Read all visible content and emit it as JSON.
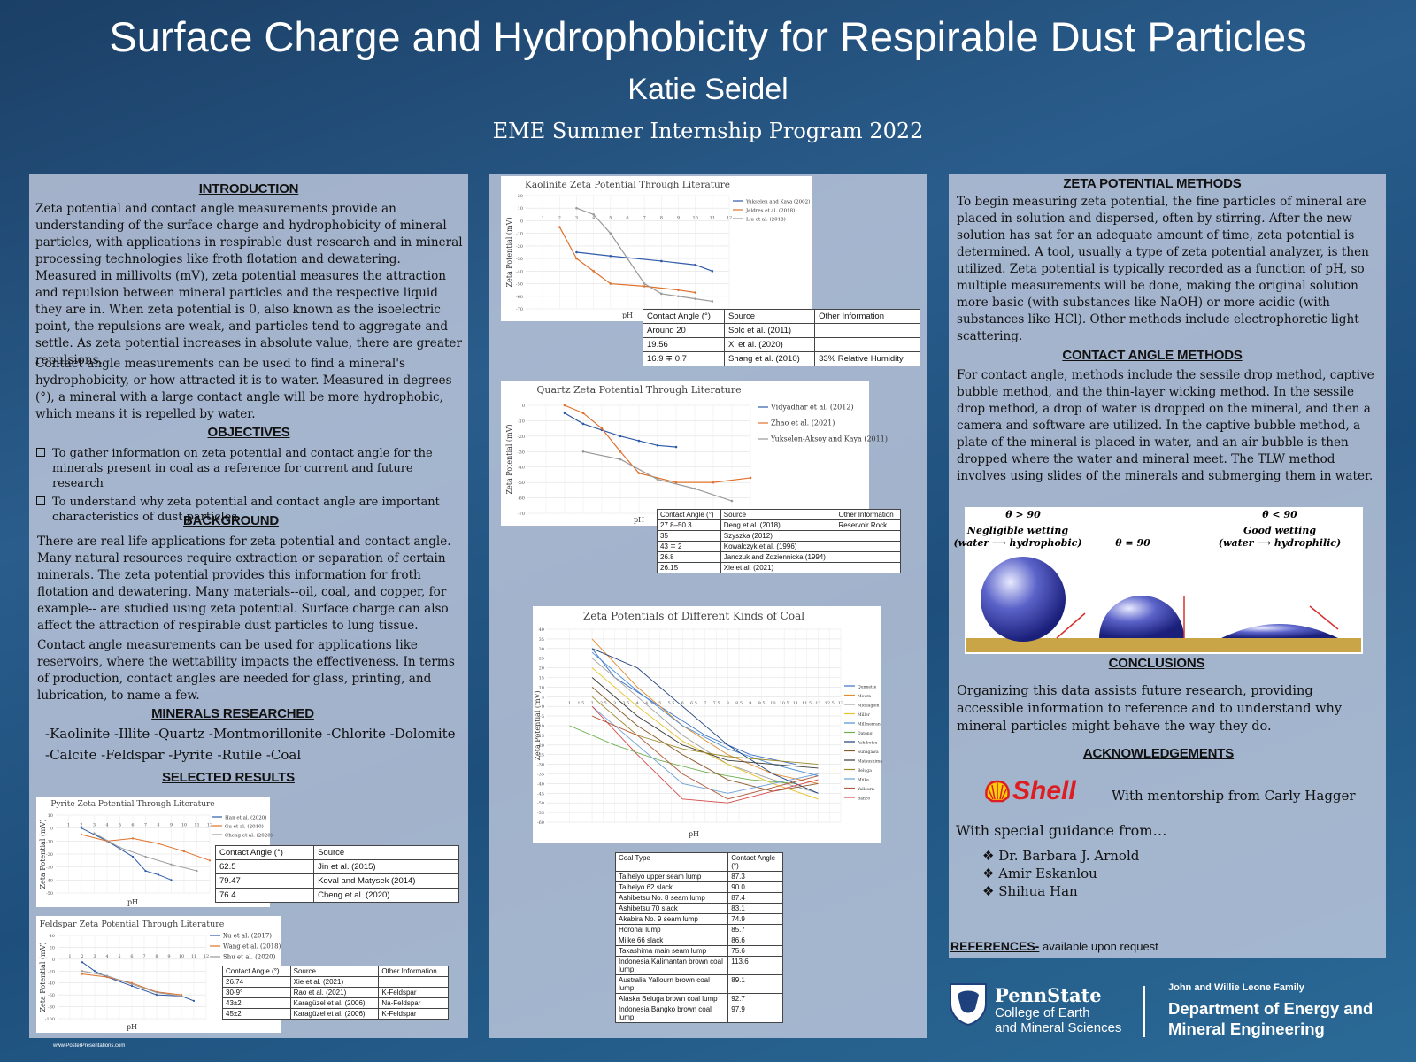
{
  "header": {
    "title": "Surface Charge and Hydrophobicity for Respirable Dust Particles",
    "author": "Katie Seidel",
    "program": "EME Summer Internship Program 2022"
  },
  "intro": {
    "heading": "INTRODUCTION",
    "p1": "Zeta potential and contact angle measurements provide an understanding of the surface charge and hydrophobicity of mineral particles, with applications in respirable dust research and in mineral processing technologies like froth flotation and dewatering. Measured in millivolts (mV), zeta potential measures the attraction and repulsion between mineral particles and the respective liquid they are in. When zeta potential is 0, also known as the isoelectric point, the repulsions are weak, and particles tend to aggregate and settle. As zeta potential increases in absolute value, there are greater repulsions.",
    "p2": "Contact angle measurements can be used to find a mineral's hydrophobicity, or how attracted it is to water. Measured in degrees (°), a mineral with a large contact angle will be more hydrophobic, which means it is repelled by water."
  },
  "objectives": {
    "heading": "OBJECTIVES",
    "items": [
      "To gather information on zeta potential and contact angle for the minerals present in coal as a reference for current and future research",
      "To understand why zeta potential and contact angle are important characteristics of dust particles"
    ]
  },
  "background": {
    "heading": "BACKGROUND",
    "p1": "There are real life applications for zeta potential and contact angle. Many natural resources require extraction or separation of certain minerals. The zeta potential provides this information for froth flotation and dewatering. Many materials--oil, coal, and copper, for example-- are studied using zeta potential. Surface charge can also affect the attraction of respirable dust particles to lung tissue.",
    "p2": "Contact angle measurements can be used for applications like reservoirs, where the wettability impacts the effectiveness. In terms of production, contact angles are needed for glass, printing, and lubrication, to name a few."
  },
  "minerals": {
    "heading": "MINERALS RESEARCHED",
    "line1": "-Kaolinite  -Illite -Quartz -Montmorillonite -Chlorite -Dolomite",
    "line2": "-Calcite -Feldspar -Pyrite -Rutile -Coal"
  },
  "selected_heading": "SELECTED RESULTS",
  "tables": {
    "headers": {
      "angle": "Contact Angle (°)",
      "source": "Source",
      "other": "Other Information"
    },
    "pyrite": [
      [
        "62.5",
        "Jin et al. (2015)"
      ],
      [
        "79.47",
        "Koval and Matysek (2014)"
      ],
      [
        "76.4",
        "Cheng et al. (2020)"
      ]
    ],
    "feldspar": [
      [
        "26.74",
        "Xie et al. (2021)",
        ""
      ],
      [
        "30-9°",
        "Rao et al. (2021)",
        "K-Feldspar"
      ],
      [
        "43±2",
        "Karagüzel et al. (2006)",
        "Na-Feldspar"
      ],
      [
        "45±2",
        "Karagüzel et al. (2006)",
        "K-Feldspar"
      ]
    ],
    "kaolinite": [
      [
        "Around 20",
        "Solc et al. (2011)",
        ""
      ],
      [
        "19.56",
        "Xi et al. (2020)",
        ""
      ],
      [
        "16.9 ∓ 0.7",
        "Shang et al. (2010)",
        "33% Relative Humidity"
      ]
    ],
    "quartz": [
      [
        "27.8–50.3",
        "Deng et al. (2018)",
        "Reservoir Rock"
      ],
      [
        "35",
        "Szyszka (2012)",
        ""
      ],
      [
        "43 ∓ 2",
        "Kowalczyk et al. (1996)",
        ""
      ],
      [
        "26.8",
        "Janczuk and Zdziennicka (1994)",
        ""
      ],
      [
        "26.15",
        "Xie et al. (2021)",
        ""
      ]
    ],
    "coal_headers": {
      "type": "Coal Type",
      "angle": "Contact Angle (°)"
    },
    "coal": [
      [
        "Taiheiyo upper seam lump",
        "87.3"
      ],
      [
        "Taiheiyo 62 slack",
        "90.0"
      ],
      [
        "Ashibetsu No. 8 seam lump",
        "87.4"
      ],
      [
        "Ashibetsu 70 slack",
        "83.1"
      ],
      [
        "Akabira No. 9 seam lump",
        "74.9"
      ],
      [
        "Horonai lump",
        "85.7"
      ],
      [
        "Miike 66 slack",
        "86.6"
      ],
      [
        "Takashima main seam lump",
        "75.6"
      ],
      [
        "Indonesia Kalimantan brown coal lump",
        "113.6"
      ],
      [
        "Australia Yallourn brown coal lump",
        "89.1"
      ],
      [
        "Alaska Beluga brown coal lump",
        "92.7"
      ],
      [
        "Indonesia Bangko brown coal lump",
        "97.9"
      ]
    ]
  },
  "chart_data": [
    {
      "type": "line",
      "title": "Kaolinite Zeta Potential Through Literature",
      "xlabel": "pH",
      "ylabel": "Zeta Potential (mV)",
      "xlim": [
        0,
        12
      ],
      "ylim": [
        -70,
        20
      ],
      "series": [
        {
          "name": "Yukselen and Kaya (2002)",
          "color": "#2f5aa8",
          "x": [
            3,
            5,
            8,
            10,
            11
          ],
          "y": [
            -25,
            -28,
            -32,
            -35,
            -40
          ]
        },
        {
          "name": "Jeldres et al. (2018)",
          "color": "#e0702a",
          "x": [
            2,
            3,
            4,
            5,
            7,
            9,
            10
          ],
          "y": [
            -5,
            -30,
            -40,
            -50,
            -52,
            -55,
            -57
          ]
        },
        {
          "name": "Liu et al. (2018)",
          "color": "#9a9a9a",
          "x": [
            3,
            4,
            5,
            6,
            7,
            8,
            9,
            10,
            11
          ],
          "y": [
            10,
            5,
            -10,
            -30,
            -50,
            -58,
            -60,
            -62,
            -64
          ]
        }
      ]
    },
    {
      "type": "line",
      "title": "Quartz Zeta Potential Through Literature",
      "xlabel": "pH",
      "ylabel": "Zeta Potential (mV)",
      "xlim": [
        0,
        12
      ],
      "ylim": [
        -70,
        0
      ],
      "series": [
        {
          "name": "Vidyadhar et al. (2012)",
          "color": "#2f5aa8",
          "x": [
            2,
            3,
            4,
            5,
            6,
            7,
            8
          ],
          "y": [
            -5,
            -12,
            -16,
            -20,
            -23,
            -26,
            -27
          ]
        },
        {
          "name": "Zhao et al. (2021)",
          "color": "#e0702a",
          "x": [
            2,
            3,
            4,
            5,
            6,
            8,
            10,
            12
          ],
          "y": [
            0,
            -5,
            -15,
            -30,
            -44,
            -50,
            -50,
            -47
          ]
        },
        {
          "name": "Yukselen-Aksoy and Kaya (2011)",
          "color": "#9a9a9a",
          "x": [
            3,
            5,
            7,
            9,
            11
          ],
          "y": [
            -30,
            -35,
            -48,
            -54,
            -62
          ]
        }
      ]
    },
    {
      "type": "line",
      "title": "Pyrite Zeta Potential Through Literature",
      "xlabel": "pH",
      "ylabel": "Zeta Potential (mV)",
      "xlim": [
        0,
        12
      ],
      "ylim": [
        -50,
        10
      ],
      "series": [
        {
          "name": "Han et al. (2020)",
          "color": "#2f5aa8",
          "x": [
            2,
            4,
            6,
            7,
            8,
            9
          ],
          "y": [
            0,
            -10,
            -22,
            -33,
            -36,
            -40
          ]
        },
        {
          "name": "Gu et al. (2010)",
          "color": "#e0702a",
          "x": [
            2,
            4,
            6,
            8,
            10,
            12
          ],
          "y": [
            -5,
            -10,
            -8,
            -12,
            -18,
            -25
          ]
        },
        {
          "name": "Cheng et al. (2020)",
          "color": "#9a9a9a",
          "x": [
            3,
            5,
            7,
            9,
            11
          ],
          "y": [
            -4,
            -15,
            -22,
            -28,
            -33
          ]
        }
      ]
    },
    {
      "type": "line",
      "title": "Feldspar Zeta Potential Through Literature",
      "xlabel": "pH",
      "ylabel": "Zeta Potential (mV)",
      "xlim": [
        0,
        12
      ],
      "ylim": [
        -100,
        40
      ],
      "series": [
        {
          "name": "Xu et al. (2017)",
          "color": "#2f5aa8",
          "x": [
            2,
            3,
            4,
            6,
            8,
            10,
            11
          ],
          "y": [
            -5,
            -20,
            -30,
            -45,
            -60,
            -62,
            -70
          ]
        },
        {
          "name": "Wang et al. (2018)",
          "color": "#e0702a",
          "x": [
            2,
            4,
            6,
            8,
            10
          ],
          "y": [
            -25,
            -30,
            -40,
            -55,
            -60
          ]
        },
        {
          "name": "Shu et al. (2020)",
          "color": "#9a9a9a",
          "x": [
            2,
            4,
            6,
            8,
            10
          ],
          "y": [
            -20,
            -28,
            -42,
            -56,
            -62
          ]
        }
      ]
    },
    {
      "type": "line",
      "title": "Zeta Potentials of Different Kinds of Coal",
      "xlabel": "pH",
      "ylabel": "Zeta Potential (mV)",
      "xlim": [
        0,
        13
      ],
      "ylim": [
        -60,
        40
      ],
      "series": [
        {
          "name": "Qunnette",
          "color": "#3b6fc4",
          "x": [
            2,
            3,
            5,
            7,
            9,
            11
          ],
          "y": [
            30,
            15,
            0,
            -15,
            -25,
            -30
          ]
        },
        {
          "name": "Moura",
          "color": "#e38a2e",
          "x": [
            2,
            4,
            6,
            8,
            10,
            12
          ],
          "y": [
            35,
            10,
            -10,
            -25,
            -35,
            -40
          ]
        },
        {
          "name": "Middagion",
          "color": "#a0a0a0",
          "x": [
            2,
            4,
            6,
            8,
            10,
            12
          ],
          "y": [
            25,
            5,
            -15,
            -30,
            -38,
            -45
          ]
        },
        {
          "name": "Miller",
          "color": "#e8c228",
          "x": [
            2,
            4,
            6,
            8,
            10,
            12
          ],
          "y": [
            20,
            0,
            -18,
            -30,
            -40,
            -48
          ]
        },
        {
          "name": "Millmerran",
          "color": "#4b8fd4",
          "x": [
            2,
            4,
            6,
            8,
            10,
            12
          ],
          "y": [
            28,
            8,
            -10,
            -22,
            -30,
            -36
          ]
        },
        {
          "name": "Datong",
          "color": "#6ab04c",
          "x": [
            1,
            3,
            5,
            7,
            9,
            11
          ],
          "y": [
            -10,
            -20,
            -28,
            -34,
            -38,
            -40
          ]
        },
        {
          "name": "Ashibetsu",
          "color": "#1f3f7a",
          "x": [
            2,
            4,
            6,
            8,
            10,
            12
          ],
          "y": [
            30,
            20,
            0,
            -20,
            -35,
            -45
          ]
        },
        {
          "name": "Sunagawa",
          "color": "#8a5a2b",
          "x": [
            2,
            4,
            6,
            8,
            10,
            12
          ],
          "y": [
            10,
            -10,
            -25,
            -38,
            -44,
            -40
          ]
        },
        {
          "name": "Matsushima",
          "color": "#3a3a3a",
          "x": [
            2,
            4,
            6,
            8,
            10,
            12
          ],
          "y": [
            15,
            -5,
            -20,
            -28,
            -30,
            -32
          ]
        },
        {
          "name": "Beluga",
          "color": "#9c8a2a",
          "x": [
            2,
            4,
            6,
            8,
            10,
            12
          ],
          "y": [
            5,
            -15,
            -22,
            -26,
            -28,
            -30
          ]
        },
        {
          "name": "Miike",
          "color": "#6f9fd8",
          "x": [
            2,
            4,
            6,
            8,
            10,
            12
          ],
          "y": [
            0,
            -20,
            -40,
            -45,
            -40,
            -35
          ]
        },
        {
          "name": "Yallourn",
          "color": "#b25a3a",
          "x": [
            2,
            4,
            6,
            8,
            10,
            12
          ],
          "y": [
            -5,
            -15,
            -35,
            -48,
            -42,
            -36
          ]
        },
        {
          "name": "Banco",
          "color": "#d44a4a",
          "x": [
            2,
            4,
            6,
            8,
            10,
            12
          ],
          "y": [
            0,
            -25,
            -48,
            -50,
            -44,
            -38
          ]
        }
      ]
    }
  ],
  "zeta_methods": {
    "heading": "ZETA POTENTIAL METHODS",
    "text": "To begin measuring zeta potential, the fine particles of mineral are placed in  solution and dispersed, often by stirring. After the new solution has sat for an adequate amount of time, zeta potential is determined. A tool, usually a type of zeta potential analyzer, is then utilized. Zeta potential is typically recorded as a function of pH, so multiple measurements will be done, making the original solution more basic (with substances like NaOH) or more acidic (with substances like HCl). Other methods include electrophoretic light scattering."
  },
  "contact_methods": {
    "heading": "CONTACT ANGLE METHODS",
    "text": "For contact angle, methods include the sessile drop method, captive bubble method, and the thin-layer wicking method. In the sessile drop method, a drop of water is dropped on the mineral, and then a camera and software are utilized. In the captive bubble method, a plate of the mineral is placed in water, and an air bubble is then dropped where the water and mineral meet. The TLW method involves using slides of the minerals and submerging them in water."
  },
  "wetting": {
    "left_angle": "θ > 90",
    "left_line1": "Negligible wetting",
    "left_line2": "(water ⟶ hydrophobic)",
    "mid_angle": "θ = 90",
    "right_angle": "θ < 90",
    "right_line1": "Good wetting",
    "right_line2": "(water ⟶ hydrophilic)"
  },
  "conclusions": {
    "heading": "CONCLUSIONS",
    "text": "Organizing this data assists future research, providing accessible information to reference and to understand why mineral particles might behave the way they do."
  },
  "acknowledgements": {
    "heading": "ACKNOWLEDGEMENTS",
    "shell": "Shell",
    "mentorship": "With mentorship from Carly Hagger",
    "guidance": "With special guidance from…",
    "people": [
      "Dr. Barbara J. Arnold",
      "Amir Eskanlou",
      "Shihua Han"
    ]
  },
  "references": {
    "label": "REFERENCES-",
    "text": " available upon request"
  },
  "footer": {
    "pennstate": "PennState",
    "college1": "College of Earth",
    "college2": "and Mineral Sciences",
    "dept_small": "John and Willie Leone Family",
    "dept1": "Department of Energy and",
    "dept2": "Mineral Engineering",
    "posterpresentations": "www.PosterPresentations.com"
  },
  "colors": {
    "shell_red": "#dd1d21",
    "shell_yellow": "#fbce07",
    "accent": "#1e4f7c"
  }
}
